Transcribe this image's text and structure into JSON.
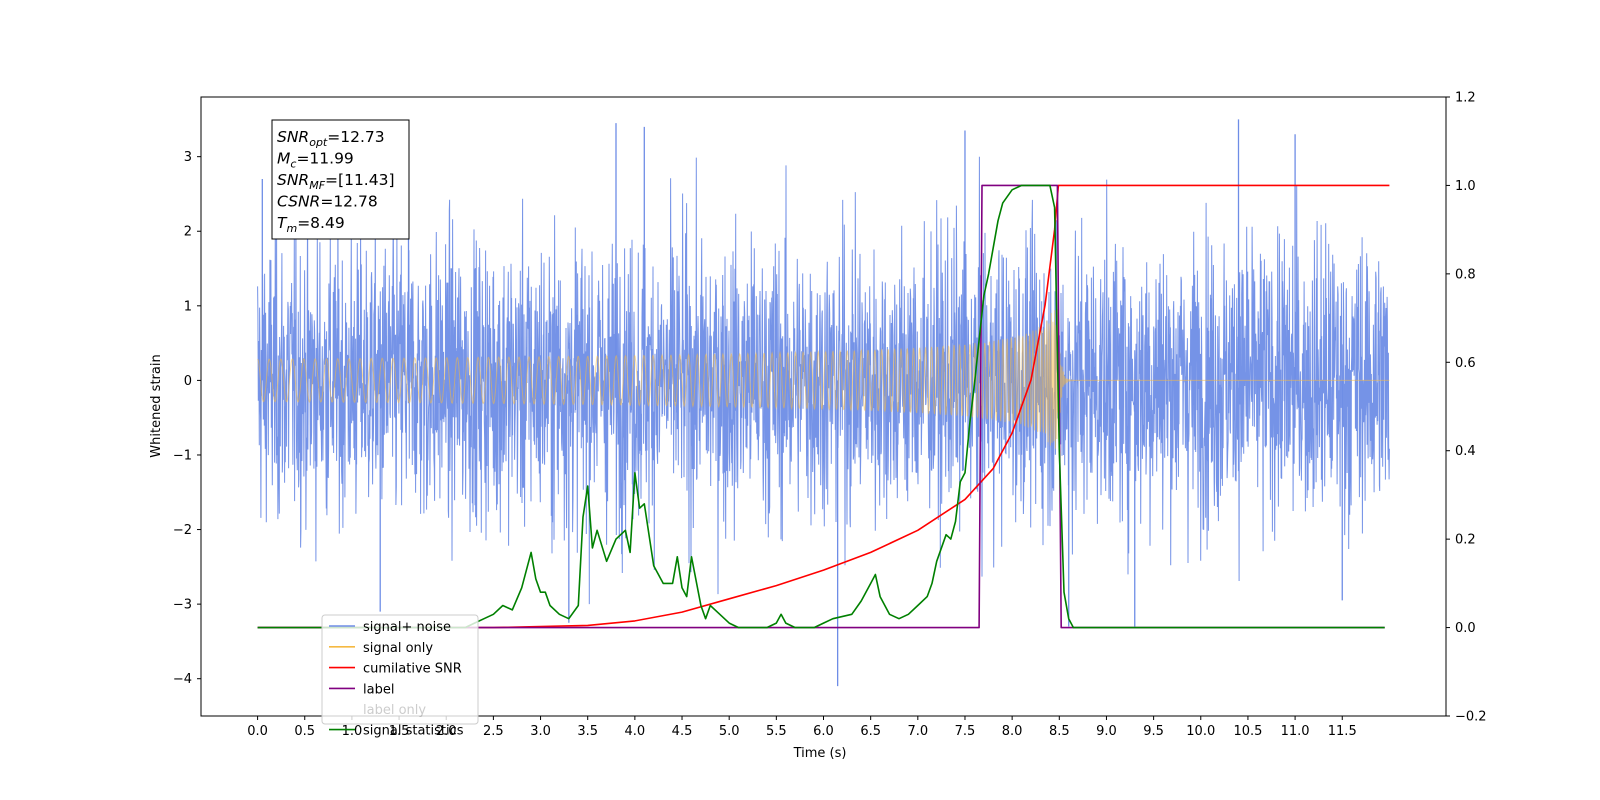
{
  "chart_data": {
    "type": "line",
    "xlabel": "Time (s)",
    "ylabel": "Whitened strain",
    "xlim": [
      -0.6,
      12.6
    ],
    "ylim": [
      -4.5,
      3.8
    ],
    "y2lim": [
      -0.2,
      1.2
    ],
    "x_ticks": [
      0.0,
      0.5,
      1.0,
      1.5,
      2.0,
      2.5,
      3.0,
      3.5,
      4.0,
      4.5,
      5.0,
      5.5,
      6.0,
      6.5,
      7.0,
      7.5,
      8.0,
      8.5,
      9.0,
      9.5,
      10.0,
      10.5,
      11.0,
      11.5
    ],
    "x_tick_labels": [
      "0.0",
      "0.5",
      "1.0",
      "1.5",
      "2.0",
      "2.5",
      "3.0",
      "3.5",
      "4.0",
      "4.5",
      "5.0",
      "5.5",
      "6.0",
      "6.5",
      "7.0",
      "7.5",
      "8.0",
      "8.5",
      "9.0",
      "9.5",
      "10.0",
      "10.5",
      "11.0",
      "11.5"
    ],
    "y_ticks": [
      -4,
      -3,
      -2,
      -1,
      0,
      1,
      2,
      3
    ],
    "y_tick_labels": [
      "−4",
      "−3",
      "−2",
      "−1",
      "0",
      "1",
      "2",
      "3"
    ],
    "y2_ticks": [
      -0.2,
      0.0,
      0.2,
      0.4,
      0.6,
      0.8,
      1.0,
      1.2
    ],
    "y2_tick_labels": [
      "−0.2",
      "0.0",
      "0.2",
      "0.4",
      "0.6",
      "0.8",
      "1.0",
      "1.2"
    ],
    "grid": false,
    "legend_position": "lower-left",
    "annotation": {
      "lines": [
        {
          "base": "SNR",
          "sub": "opt",
          "value": "=12.73"
        },
        {
          "base": "M",
          "sub": "c",
          "value": "=11.99"
        },
        {
          "base": "SNR",
          "sub": "MF",
          "value": "=[11.43]"
        },
        {
          "base": "CSNR",
          "sub": "",
          "value": "=12.78"
        },
        {
          "base": "T",
          "sub": "m",
          "value": "=8.49"
        }
      ]
    },
    "series": [
      {
        "name": "signal+ noise",
        "axis": "left",
        "color": "#6e8de6",
        "style": "noise",
        "x_range": [
          0.0,
          12.0
        ],
        "sigma": 0.95,
        "peak_values": [
          {
            "x": 0.05,
            "y": 2.7
          },
          {
            "x": 1.6,
            "y": 3.3
          },
          {
            "x": 3.8,
            "y": 3.45
          },
          {
            "x": 4.1,
            "y": 3.4
          },
          {
            "x": 7.5,
            "y": 3.35
          },
          {
            "x": 10.4,
            "y": 3.5
          },
          {
            "x": 11.0,
            "y": 3.3
          },
          {
            "x": 1.3,
            "y": -3.1
          },
          {
            "x": 3.3,
            "y": -3.25
          },
          {
            "x": 6.15,
            "y": -4.1
          },
          {
            "x": 8.6,
            "y": -3.3
          },
          {
            "x": 9.3,
            "y": -3.3
          },
          {
            "x": 11.5,
            "y": -2.95
          }
        ]
      },
      {
        "name": "signal only",
        "axis": "left",
        "color": "#f5b942",
        "style": "chirp",
        "x_range": [
          0.0,
          12.0
        ],
        "merger_time": 8.49,
        "peak_amplitude": 1.0
      },
      {
        "name": "cumilative SNR",
        "axis": "right",
        "color": "#ff0000",
        "x": [
          0.0,
          2.5,
          3.5,
          4.0,
          4.5,
          5.0,
          5.5,
          6.0,
          6.5,
          7.0,
          7.5,
          7.8,
          8.0,
          8.2,
          8.35,
          8.45,
          8.49,
          9.0,
          10.0,
          11.0,
          12.0
        ],
        "y": [
          0.0,
          0.0,
          0.005,
          0.015,
          0.035,
          0.065,
          0.095,
          0.13,
          0.17,
          0.22,
          0.29,
          0.36,
          0.44,
          0.56,
          0.73,
          0.9,
          1.0,
          1.0,
          1.0,
          1.0,
          1.0
        ]
      },
      {
        "name": "label",
        "axis": "right",
        "color": "#800080",
        "x": [
          0.0,
          7.65,
          7.68,
          8.48,
          8.52,
          11.95
        ],
        "y": [
          0.0,
          0.0,
          1.0,
          1.0,
          0.0,
          0.0
        ]
      },
      {
        "name": "label only",
        "axis": "right",
        "color": "#808080",
        "legend_only": true
      },
      {
        "name": "signal statistics",
        "axis": "right",
        "color": "#008000",
        "x": [
          0.0,
          2.2,
          2.3,
          2.4,
          2.5,
          2.6,
          2.7,
          2.8,
          2.9,
          2.95,
          3.0,
          3.05,
          3.1,
          3.2,
          3.3,
          3.4,
          3.45,
          3.5,
          3.55,
          3.6,
          3.7,
          3.8,
          3.9,
          3.95,
          4.0,
          4.05,
          4.1,
          4.2,
          4.3,
          4.4,
          4.45,
          4.5,
          4.55,
          4.6,
          4.7,
          4.75,
          4.8,
          4.9,
          5.0,
          5.1,
          5.2,
          5.4,
          5.5,
          5.55,
          5.6,
          5.7,
          5.9,
          6.0,
          6.1,
          6.3,
          6.4,
          6.5,
          6.55,
          6.6,
          6.7,
          6.8,
          6.9,
          7.0,
          7.1,
          7.15,
          7.2,
          7.3,
          7.35,
          7.4,
          7.45,
          7.5,
          7.55,
          7.6,
          7.65,
          7.7,
          7.75,
          7.8,
          7.85,
          7.9,
          8.0,
          8.1,
          8.2,
          8.3,
          8.4,
          8.45,
          8.5,
          8.55,
          8.6,
          8.65,
          11.95
        ],
        "y": [
          0.0,
          0.0,
          0.01,
          0.02,
          0.03,
          0.05,
          0.04,
          0.09,
          0.17,
          0.11,
          0.08,
          0.08,
          0.05,
          0.03,
          0.02,
          0.05,
          0.25,
          0.32,
          0.18,
          0.22,
          0.15,
          0.2,
          0.22,
          0.17,
          0.35,
          0.27,
          0.28,
          0.14,
          0.1,
          0.1,
          0.16,
          0.09,
          0.07,
          0.16,
          0.05,
          0.02,
          0.05,
          0.03,
          0.01,
          0.0,
          0.0,
          0.0,
          0.01,
          0.03,
          0.01,
          0.0,
          0.0,
          0.01,
          0.02,
          0.03,
          0.06,
          0.1,
          0.12,
          0.07,
          0.03,
          0.02,
          0.03,
          0.05,
          0.07,
          0.1,
          0.15,
          0.21,
          0.2,
          0.24,
          0.33,
          0.35,
          0.46,
          0.55,
          0.65,
          0.75,
          0.8,
          0.86,
          0.92,
          0.96,
          0.99,
          1.0,
          1.0,
          1.0,
          1.0,
          0.95,
          0.4,
          0.08,
          0.02,
          0.0,
          0.0
        ]
      }
    ]
  }
}
